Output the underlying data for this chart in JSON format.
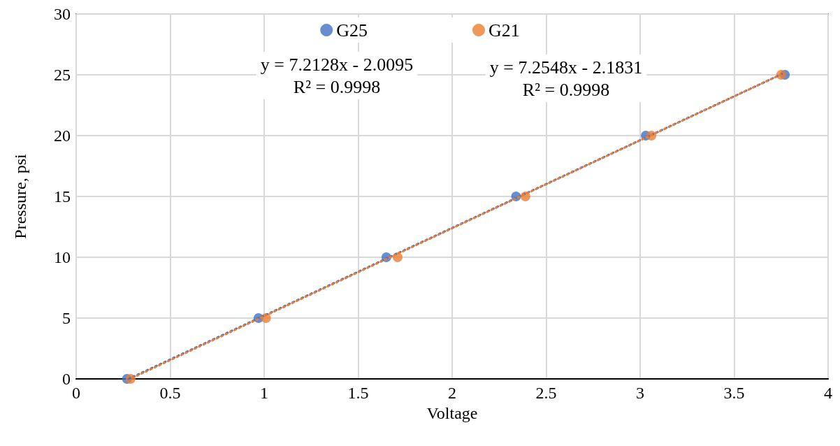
{
  "chart_data": {
    "type": "scatter",
    "xlabel": "Voltage",
    "ylabel": "Pressure, psi",
    "xlim": [
      0,
      4
    ],
    "xticks": [
      0,
      0.5,
      1,
      1.5,
      2,
      2.5,
      3,
      3.5,
      4
    ],
    "ylim": [
      0,
      30
    ],
    "yticks": [
      0,
      5,
      10,
      15,
      20,
      25,
      30
    ],
    "grid": true,
    "legend": "top",
    "marker": "circle",
    "annotations": [
      "y = 7.2128x - 2.0095\nR² = 0.9998",
      "y = 7.2548x - 2.1831\nR² = 0.9998"
    ],
    "series": [
      {
        "name": "G25",
        "color": "#4472c4",
        "x": [
          0.27,
          0.97,
          1.65,
          2.34,
          3.03,
          3.77
        ],
        "values": [
          0,
          5,
          10,
          15,
          20,
          25
        ]
      },
      {
        "name": "G21",
        "color": "#ed7d31",
        "x": [
          0.29,
          1.01,
          1.71,
          2.39,
          3.06,
          3.75
        ],
        "values": [
          0,
          5,
          10,
          15,
          20,
          25
        ]
      },
      {
        "type": "line",
        "color": "#4472c4",
        "line_style": "dotted",
        "marker": "none",
        "x": [
          0.28,
          3.77
        ],
        "values": [
          0.01,
          25.18
        ]
      },
      {
        "type": "line",
        "color": "#ed7d31",
        "line_style": "dotted",
        "marker": "none",
        "x": [
          0.3,
          3.76
        ],
        "values": [
          0.09,
          25.1
        ]
      }
    ]
  }
}
